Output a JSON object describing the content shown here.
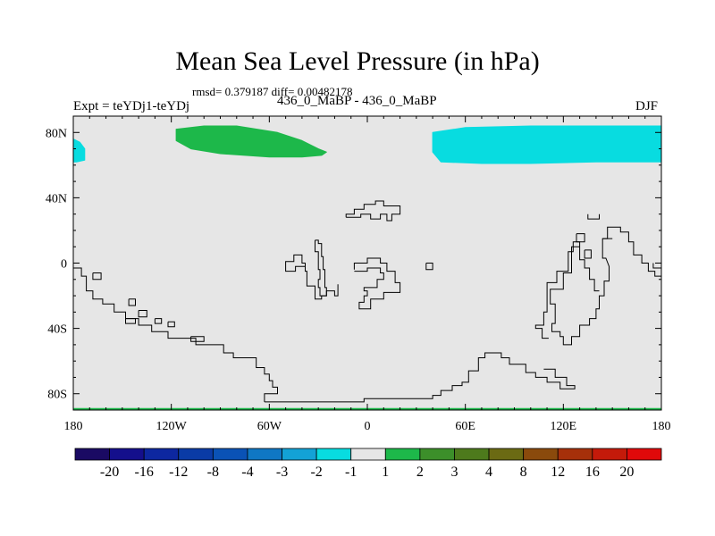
{
  "chart_data": {
    "type": "heatmap",
    "title": "Mean Sea Level Pressure (in hPa)",
    "stats_label": "rmsd= 0.379187 diff= 0.00482178",
    "left_label": "Expt = teYDj1-teYDj",
    "center_label": "436_0_MaBP - 436_0_MaBP",
    "right_label": "DJF",
    "xlim": [
      -180,
      180
    ],
    "ylim": [
      -90,
      90
    ],
    "x_ticks": [
      {
        "value": -180,
        "label": "180"
      },
      {
        "value": -120,
        "label": "120W"
      },
      {
        "value": -60,
        "label": "60W"
      },
      {
        "value": 0,
        "label": "0"
      },
      {
        "value": 60,
        "label": "60E"
      },
      {
        "value": 120,
        "label": "120E"
      },
      {
        "value": 180,
        "label": "180"
      }
    ],
    "y_ticks": [
      {
        "value": 80,
        "label": "80N"
      },
      {
        "value": 40,
        "label": "40N"
      },
      {
        "value": 0,
        "label": "0"
      },
      {
        "value": -40,
        "label": "40S"
      },
      {
        "value": -80,
        "label": "80S"
      }
    ],
    "background_color": "#e6e6e6",
    "colorbar": {
      "labels": [
        "-20",
        "-16",
        "-12",
        "-8",
        "-4",
        "-3",
        "-2",
        "-1",
        "1",
        "2",
        "3",
        "4",
        "8",
        "12",
        "16",
        "20"
      ],
      "colors": [
        "#1a0a63",
        "#140f8c",
        "#0d27a0",
        "#0a3ba6",
        "#0a52b6",
        "#0f77c4",
        "#13a2d6",
        "#08dce0",
        "#e6e6e6",
        "#1db84a",
        "#3c8f2a",
        "#4d7a1c",
        "#6b6a13",
        "#8a4a0c",
        "#a6300a",
        "#c41a0a",
        "#e0090a"
      ]
    },
    "anomaly_regions": [
      {
        "label": "-1 to -2",
        "color": "#08dce0",
        "points": [
          [
            -180,
            76
          ],
          [
            -176,
            74
          ],
          [
            -173,
            70
          ],
          [
            -173,
            63
          ],
          [
            -178,
            62
          ],
          [
            -180,
            62
          ]
        ]
      },
      {
        "label": "1 to 2",
        "color": "#1db84a",
        "points": [
          [
            -117,
            82
          ],
          [
            -100,
            84
          ],
          [
            -80,
            84
          ],
          [
            -55,
            80
          ],
          [
            -40,
            75
          ],
          [
            -30,
            70
          ],
          [
            -25,
            68
          ],
          [
            -28,
            66
          ],
          [
            -40,
            65
          ],
          [
            -60,
            65
          ],
          [
            -90,
            67
          ],
          [
            -108,
            70
          ],
          [
            -117,
            75
          ]
        ]
      },
      {
        "label": "-1 to -2",
        "color": "#08dce0",
        "points": [
          [
            40,
            80
          ],
          [
            60,
            83
          ],
          [
            100,
            84
          ],
          [
            140,
            84
          ],
          [
            180,
            84
          ],
          [
            180,
            62
          ],
          [
            162,
            62
          ],
          [
            140,
            62
          ],
          [
            100,
            61
          ],
          [
            70,
            61
          ],
          [
            45,
            62
          ],
          [
            40,
            68
          ],
          [
            40,
            75
          ]
        ]
      },
      {
        "label": "1 to 2",
        "color": "#1db84a",
        "points": [
          [
            -180,
            -89
          ],
          [
            180,
            -89
          ],
          [
            180,
            -90
          ],
          [
            -180,
            -90
          ]
        ]
      }
    ],
    "coastlines": [
      [
        [
          -63,
          -85
        ],
        [
          -63,
          -80
        ],
        [
          -55,
          -80
        ],
        [
          -55,
          -76
        ],
        [
          -58,
          -76
        ],
        [
          -58,
          -72
        ],
        [
          -60,
          -72
        ],
        [
          -60,
          -68
        ],
        [
          -63,
          -68
        ],
        [
          -63,
          -64
        ],
        [
          -68,
          -64
        ],
        [
          -68,
          -58
        ],
        [
          -82,
          -58
        ],
        [
          -82,
          -55
        ],
        [
          -88,
          -55
        ],
        [
          -88,
          -50
        ],
        [
          -105,
          -50
        ],
        [
          -105,
          -46
        ],
        [
          -122,
          -46
        ],
        [
          -122,
          -42
        ],
        [
          -132,
          -42
        ],
        [
          -132,
          -38
        ],
        [
          -140,
          -38
        ],
        [
          -140,
          -34
        ],
        [
          -148,
          -34
        ],
        [
          -148,
          -30
        ],
        [
          -155,
          -30
        ],
        [
          -155,
          -25
        ],
        [
          -162,
          -25
        ],
        [
          -162,
          -22
        ],
        [
          -168,
          -22
        ],
        [
          -168,
          -17
        ],
        [
          -172,
          -17
        ],
        [
          -172,
          -8
        ],
        [
          -175,
          -8
        ],
        [
          -175,
          -3
        ],
        [
          -180,
          -3
        ]
      ],
      [
        [
          -63,
          -85
        ],
        [
          -60,
          -85
        ],
        [
          -25,
          -85
        ],
        [
          -2,
          -85
        ],
        [
          -2,
          -83
        ],
        [
          40,
          -83
        ],
        [
          40,
          -81
        ],
        [
          45,
          -81
        ],
        [
          45,
          -78
        ],
        [
          52,
          -78
        ],
        [
          52,
          -75
        ],
        [
          58,
          -75
        ],
        [
          58,
          -73
        ],
        [
          62,
          -73
        ],
        [
          62,
          -66
        ],
        [
          68,
          -66
        ],
        [
          68,
          -58
        ],
        [
          72,
          -58
        ],
        [
          72,
          -55
        ],
        [
          82,
          -55
        ],
        [
          82,
          -58
        ],
        [
          87,
          -58
        ],
        [
          87,
          -62
        ],
        [
          97,
          -62
        ],
        [
          97,
          -67
        ],
        [
          103,
          -67
        ],
        [
          103,
          -70
        ],
        [
          110,
          -70
        ],
        [
          110,
          -73
        ],
        [
          118,
          -73
        ],
        [
          118,
          -77
        ],
        [
          127,
          -77
        ],
        [
          127,
          -75
        ],
        [
          122,
          -75
        ],
        [
          122,
          -70
        ],
        [
          115,
          -70
        ],
        [
          115,
          -65
        ],
        [
          108,
          -65
        ]
      ],
      [
        [
          -18,
          -13
        ],
        [
          -18,
          -20
        ],
        [
          -20,
          -20
        ],
        [
          -20,
          -17
        ],
        [
          -25,
          -17
        ],
        [
          -25,
          -20
        ],
        [
          -28,
          -20
        ],
        [
          -28,
          -22
        ],
        [
          -32,
          -22
        ],
        [
          -32,
          -14
        ],
        [
          -37,
          -14
        ],
        [
          -37,
          -5
        ],
        [
          -38,
          -5
        ],
        [
          -38,
          0
        ],
        [
          -40,
          0
        ],
        [
          -40,
          5
        ],
        [
          -45,
          5
        ],
        [
          -45,
          1
        ],
        [
          -50,
          1
        ],
        [
          -50,
          -5
        ],
        [
          -44,
          -5
        ],
        [
          -44,
          -2
        ],
        [
          -38,
          -2
        ]
      ],
      [
        [
          -32,
          14
        ],
        [
          -32,
          7
        ],
        [
          -30,
          7
        ],
        [
          -30,
          -4
        ],
        [
          -29,
          -4
        ],
        [
          -29,
          -10
        ],
        [
          -30,
          -10
        ],
        [
          -30,
          -15
        ],
        [
          -29,
          -15
        ],
        [
          -29,
          -20
        ],
        [
          -25,
          -20
        ],
        [
          -25,
          -15
        ],
        [
          -26,
          -15
        ],
        [
          -26,
          -4
        ],
        [
          -27,
          -4
        ],
        [
          -27,
          4
        ],
        [
          -28,
          4
        ],
        [
          -28,
          12
        ],
        [
          -30,
          12
        ],
        [
          -30,
          14
        ],
        [
          -32,
          14
        ]
      ],
      [
        [
          -13,
          28
        ],
        [
          -13,
          30
        ],
        [
          -8,
          30
        ],
        [
          -8,
          33
        ],
        [
          -2,
          33
        ],
        [
          -2,
          36
        ],
        [
          5,
          36
        ],
        [
          5,
          38
        ],
        [
          10,
          38
        ],
        [
          10,
          35
        ],
        [
          20,
          35
        ],
        [
          20,
          30
        ],
        [
          15,
          30
        ],
        [
          15,
          26
        ],
        [
          12,
          26
        ],
        [
          12,
          30
        ],
        [
          8,
          30
        ],
        [
          8,
          27
        ],
        [
          2,
          27
        ],
        [
          2,
          30
        ],
        [
          -4,
          30
        ],
        [
          -4,
          28
        ],
        [
          -13,
          28
        ]
      ],
      [
        [
          -8,
          -4
        ],
        [
          -8,
          0
        ],
        [
          0,
          0
        ],
        [
          0,
          3
        ],
        [
          8,
          3
        ],
        [
          8,
          0
        ],
        [
          12,
          0
        ],
        [
          12,
          -5
        ],
        [
          17,
          -5
        ],
        [
          17,
          -12
        ],
        [
          20,
          -12
        ],
        [
          20,
          -18
        ],
        [
          10,
          -18
        ],
        [
          10,
          -22
        ],
        [
          2,
          -22
        ],
        [
          2,
          -28
        ],
        [
          -5,
          -28
        ],
        [
          -5,
          -24
        ],
        [
          -2,
          -24
        ],
        [
          -2,
          -20
        ],
        [
          0,
          -20
        ],
        [
          0,
          -17
        ],
        [
          -2,
          -17
        ],
        [
          -2,
          -15
        ],
        [
          6,
          -15
        ],
        [
          6,
          -10
        ],
        [
          10,
          -10
        ],
        [
          10,
          -6
        ],
        [
          8,
          -6
        ],
        [
          8,
          -3
        ],
        [
          0,
          -3
        ],
        [
          0,
          -5
        ],
        [
          -8,
          -5
        ]
      ],
      [
        [
          36,
          0
        ],
        [
          40,
          0
        ],
        [
          40,
          -4
        ],
        [
          36,
          -4
        ],
        [
          36,
          0
        ]
      ],
      [
        [
          -168,
          -6
        ],
        [
          -168,
          -10
        ],
        [
          -163,
          -10
        ],
        [
          -163,
          -6
        ],
        [
          -168,
          -6
        ]
      ],
      [
        [
          -146,
          -22
        ],
        [
          -146,
          -26
        ],
        [
          -142,
          -26
        ],
        [
          -142,
          -22
        ],
        [
          -146,
          -22
        ]
      ],
      [
        [
          -140,
          -29
        ],
        [
          -140,
          -33
        ],
        [
          -135,
          -33
        ],
        [
          -135,
          -29
        ],
        [
          -140,
          -29
        ]
      ],
      [
        [
          -108,
          -45
        ],
        [
          -108,
          -48
        ],
        [
          -100,
          -48
        ],
        [
          -100,
          -45
        ],
        [
          -108,
          -45
        ]
      ],
      [
        [
          -130,
          -34
        ],
        [
          -130,
          -37
        ],
        [
          -126,
          -37
        ],
        [
          -126,
          -34
        ],
        [
          -130,
          -34
        ]
      ],
      [
        [
          -122,
          -36
        ],
        [
          -122,
          -39
        ],
        [
          -118,
          -39
        ],
        [
          -118,
          -36
        ],
        [
          -122,
          -36
        ]
      ],
      [
        [
          -148,
          -34
        ],
        [
          -148,
          -37
        ],
        [
          -142,
          -37
        ],
        [
          -142,
          -34
        ],
        [
          -148,
          -34
        ]
      ],
      [
        [
          135,
          30
        ],
        [
          135,
          27
        ],
        [
          142,
          27
        ],
        [
          142,
          30
        ]
      ],
      [
        [
          128,
          18
        ],
        [
          128,
          13
        ],
        [
          133,
          13
        ],
        [
          133,
          18
        ],
        [
          128,
          18
        ]
      ],
      [
        [
          133,
          8
        ],
        [
          133,
          3
        ],
        [
          137,
          3
        ],
        [
          137,
          8
        ],
        [
          133,
          8
        ]
      ],
      [
        [
          130,
          10
        ],
        [
          125,
          10
        ],
        [
          125,
          -6
        ],
        [
          120,
          -6
        ],
        [
          120,
          -16
        ],
        [
          112,
          -16
        ],
        [
          112,
          -25
        ],
        [
          115,
          -25
        ],
        [
          115,
          -37
        ],
        [
          113,
          -37
        ],
        [
          113,
          -42
        ],
        [
          118,
          -42
        ],
        [
          118,
          -45
        ],
        [
          120,
          -45
        ],
        [
          120,
          -50
        ],
        [
          125,
          -50
        ],
        [
          125,
          -45
        ],
        [
          130,
          -45
        ],
        [
          130,
          -38
        ],
        [
          136,
          -38
        ],
        [
          136,
          -34
        ],
        [
          140,
          -34
        ],
        [
          140,
          -28
        ],
        [
          142,
          -28
        ],
        [
          142,
          -20
        ],
        [
          145,
          -20
        ],
        [
          145,
          -11
        ],
        [
          148,
          -11
        ],
        [
          148,
          -2
        ],
        [
          148,
          -2
        ],
        [
          146,
          3
        ],
        [
          144,
          3
        ],
        [
          144,
          15
        ],
        [
          147,
          15
        ],
        [
          147,
          22
        ],
        [
          155,
          22
        ],
        [
          155,
          19
        ],
        [
          160,
          19
        ],
        [
          160,
          13
        ],
        [
          163,
          13
        ],
        [
          163,
          5
        ],
        [
          168,
          5
        ],
        [
          168,
          0
        ],
        [
          172,
          0
        ],
        [
          172,
          -5
        ],
        [
          176,
          -5
        ],
        [
          176,
          -8
        ],
        [
          180,
          -8
        ]
      ],
      [
        [
          144,
          15
        ],
        [
          150,
          15
        ]
      ],
      [
        [
          130,
          10
        ],
        [
          130,
          2
        ],
        [
          133,
          2
        ],
        [
          133,
          -3
        ],
        [
          136,
          -3
        ],
        [
          136,
          -10
        ],
        [
          139,
          -10
        ],
        [
          139,
          -17
        ],
        [
          142,
          -17
        ]
      ],
      [
        [
          130,
          10
        ],
        [
          130,
          13
        ],
        [
          126,
          13
        ],
        [
          126,
          7
        ],
        [
          123,
          7
        ],
        [
          123,
          -5
        ],
        [
          116,
          -5
        ],
        [
          116,
          -12
        ],
        [
          110,
          -12
        ],
        [
          110,
          -30
        ],
        [
          108,
          -30
        ],
        [
          108,
          -38
        ],
        [
          103,
          -38
        ],
        [
          103,
          -40
        ],
        [
          107,
          -40
        ],
        [
          107,
          -46
        ],
        [
          111,
          -46
        ]
      ],
      [
        [
          175,
          0
        ],
        [
          175,
          -3
        ],
        [
          180,
          -3
        ]
      ]
    ]
  }
}
